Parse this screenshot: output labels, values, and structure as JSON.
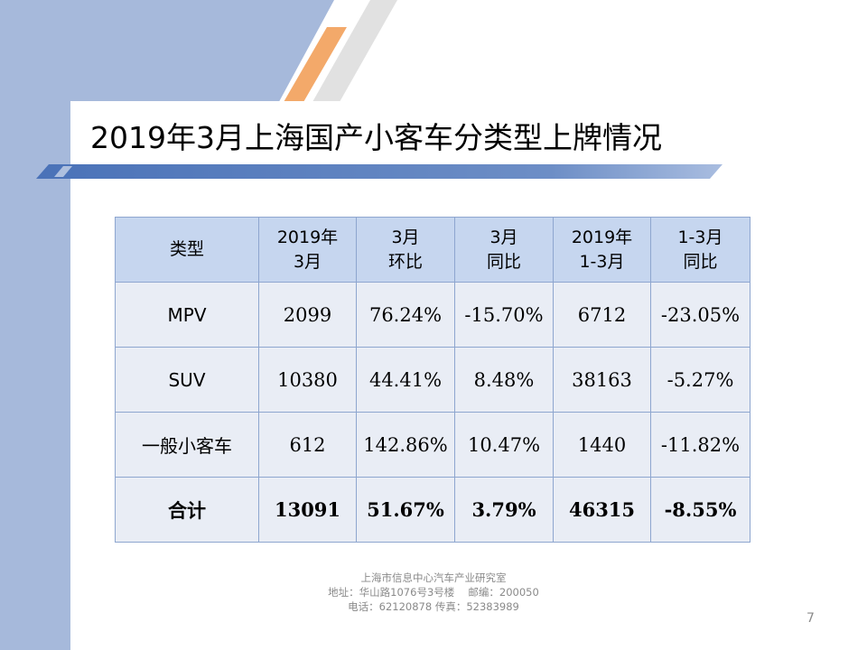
{
  "slide": {
    "title": "2019年3月上海国产小客车分类型上牌情况",
    "page_number": "7"
  },
  "table": {
    "headers": [
      {
        "line1": "类型",
        "line2": ""
      },
      {
        "line1": "2019年",
        "line2": "3月"
      },
      {
        "line1": "3月",
        "line2": "环比"
      },
      {
        "line1": "3月",
        "line2": "同比"
      },
      {
        "line1": "2019年",
        "line2": "1-3月"
      },
      {
        "line1": "1-3月",
        "line2": "同比"
      }
    ],
    "rows": [
      [
        "MPV",
        "2099",
        "76.24%",
        "-15.70%",
        "6712",
        "-23.05%"
      ],
      [
        "SUV",
        "10380",
        "44.41%",
        "8.48%",
        "38163",
        "-5.27%"
      ],
      [
        "一般小客车",
        "612",
        "142.86%",
        "10.47%",
        "1440",
        "-11.82%"
      ],
      [
        "合计",
        "13091",
        "51.67%",
        "3.79%",
        "46315",
        "-8.55%"
      ]
    ]
  },
  "footer": {
    "line1": "上海市信息中心汽车产业研究室",
    "line2": "地址：华山路1076号3号楼　 邮编：200050",
    "line3": "电话：62120878 传真：52383989"
  },
  "colors": {
    "side_band": "#a6b9db",
    "accent_orange": "#f3a96a",
    "header_fill": "#c6d6ef",
    "cell_fill": "#e9edf5",
    "border": "#8ea6cf"
  }
}
